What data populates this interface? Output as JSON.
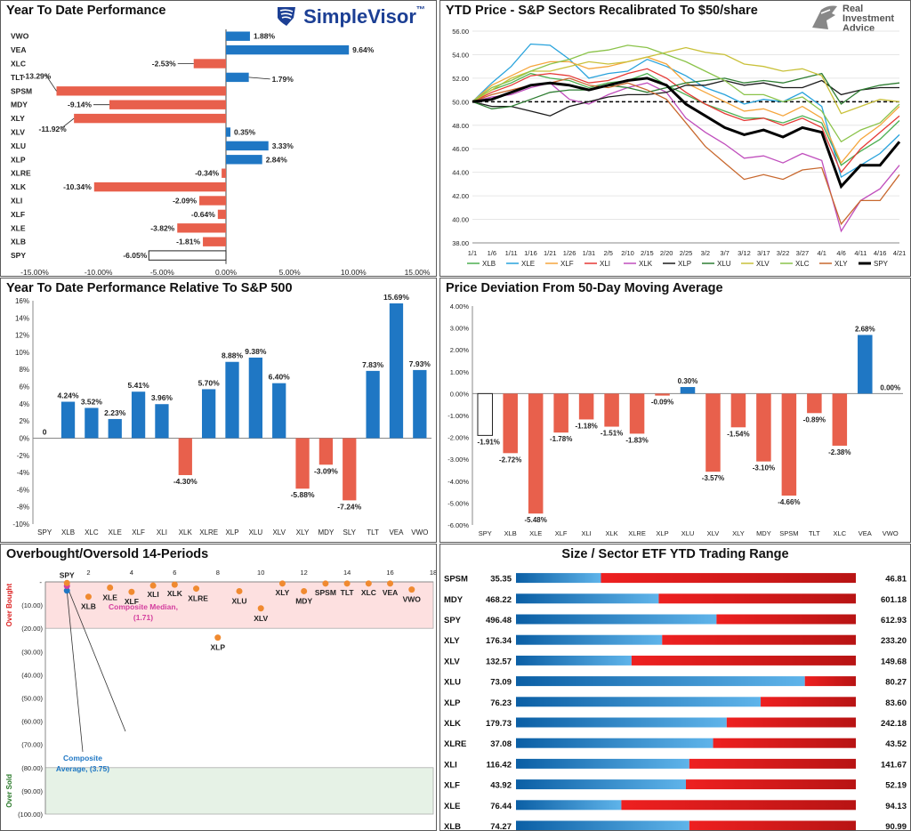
{
  "logos": {
    "simplevisor": "SimpleVisor",
    "simplevisor_tm": "™",
    "ria_line1": "Real",
    "ria_line2": "Investment",
    "ria_line3": "Advice"
  },
  "colors": {
    "positive": "#1f77c4",
    "negative": "#e8604c",
    "spy_fill": "#ffffff",
    "overbought_zone": "#fde0e0",
    "oversold_zone": "#e6f2e6"
  },
  "chart_data": [
    {
      "id": "ytd",
      "type": "bar",
      "orientation": "horizontal",
      "title": "Year To Date Performance",
      "categories": [
        "VWO",
        "VEA",
        "XLC",
        "TLT",
        "SPSM",
        "MDY",
        "XLY",
        "XLV",
        "XLU",
        "XLP",
        "XLRE",
        "XLK",
        "XLI",
        "XLF",
        "XLE",
        "XLB",
        "SPY"
      ],
      "values": [
        1.88,
        9.64,
        -2.53,
        1.79,
        -13.29,
        -9.14,
        -11.92,
        0.35,
        3.33,
        2.84,
        -0.34,
        -10.34,
        -2.09,
        -0.64,
        -3.82,
        -1.81,
        -6.05
      ],
      "labels": [
        "1.88%",
        "9.64%",
        "-2.53%",
        "1.79%",
        "-13.29%",
        "-9.14%",
        "-11.92%",
        "0.35%",
        "3.33%",
        "2.84%",
        "-0.34%",
        "-10.34%",
        "-2.09%",
        "-0.64%",
        "-3.82%",
        "-1.81%",
        "-6.05%"
      ],
      "xlim": [
        -15,
        15
      ],
      "xticks": [
        -15,
        -10,
        -5,
        0,
        5,
        10,
        15
      ],
      "xtick_labels": [
        "-15.00%",
        "-10.00%",
        "-5.00%",
        "0.00%",
        "5.00%",
        "10.00%",
        "15.00%"
      ]
    },
    {
      "id": "ytdprice",
      "type": "line",
      "title": "YTD Price - S&P Sectors Recalibrated To $50/share",
      "x_labels": [
        "1/1",
        "1/6",
        "1/11",
        "1/16",
        "1/21",
        "1/26",
        "1/31",
        "2/5",
        "2/10",
        "2/15",
        "2/20",
        "2/25",
        "3/2",
        "3/7",
        "3/12",
        "3/17",
        "3/22",
        "3/27",
        "4/1",
        "4/6",
        "4/11",
        "4/16",
        "4/21"
      ],
      "ylim": [
        38,
        56
      ],
      "yticks": [
        38,
        40,
        42,
        44,
        46,
        48,
        50,
        52,
        54,
        56
      ],
      "ytick_labels": [
        "38.00",
        "40.00",
        "42.00",
        "44.00",
        "46.00",
        "48.00",
        "50.00",
        "52.00",
        "54.00",
        "56.00"
      ],
      "reference_line": 50,
      "series": [
        {
          "name": "XLB",
          "color": "#4caf50",
          "values": [
            50,
            51.0,
            51.6,
            52.4,
            52.0,
            51.8,
            51.2,
            51.6,
            51.8,
            52.4,
            51.4,
            50.6,
            49.8,
            49.2,
            48.6,
            48.6,
            48.2,
            48.8,
            48.2,
            44.6,
            45.8,
            46.8,
            48.4
          ]
        },
        {
          "name": "XLE",
          "color": "#29a3dc",
          "values": [
            50,
            51.6,
            53.0,
            54.9,
            54.8,
            53.6,
            52.0,
            52.4,
            52.6,
            53.6,
            53.0,
            52.2,
            51.2,
            50.6,
            49.8,
            50.2,
            50.0,
            50.8,
            49.6,
            43.6,
            44.6,
            45.6,
            47.2
          ]
        },
        {
          "name": "XLF",
          "color": "#f5a63d",
          "values": [
            50,
            51.4,
            52.2,
            53.0,
            53.4,
            53.4,
            52.8,
            53.0,
            53.4,
            53.8,
            53.2,
            51.6,
            50.8,
            50.0,
            49.2,
            49.4,
            48.8,
            49.6,
            48.6,
            44.8,
            46.8,
            48.0,
            49.6
          ]
        },
        {
          "name": "XLI",
          "color": "#e53935",
          "values": [
            50,
            50.8,
            51.4,
            52.2,
            52.4,
            52.2,
            51.6,
            51.8,
            52.4,
            52.8,
            52.0,
            50.8,
            49.8,
            49.0,
            48.4,
            48.6,
            48.0,
            48.6,
            47.8,
            44.0,
            46.0,
            47.4,
            48.8
          ]
        },
        {
          "name": "XLK",
          "color": "#c04fbd",
          "values": [
            50,
            50.4,
            50.6,
            51.2,
            51.6,
            50.2,
            49.8,
            50.6,
            51.2,
            51.6,
            50.8,
            48.6,
            47.4,
            46.4,
            45.2,
            45.4,
            44.8,
            45.6,
            45.0,
            39.0,
            41.6,
            42.6,
            44.6
          ]
        },
        {
          "name": "XLP",
          "color": "#1a1a1a",
          "values": [
            50,
            49.6,
            49.6,
            49.2,
            48.8,
            49.6,
            50.0,
            50.4,
            50.6,
            50.6,
            50.8,
            51.4,
            51.4,
            51.8,
            51.4,
            51.6,
            51.2,
            51.2,
            51.8,
            50.6,
            51.0,
            51.2,
            51.2
          ]
        },
        {
          "name": "XLU",
          "color": "#2e7d32",
          "values": [
            50,
            49.4,
            49.6,
            50.2,
            50.8,
            51.0,
            51.0,
            51.4,
            51.2,
            50.8,
            51.2,
            51.6,
            51.8,
            52.0,
            51.6,
            51.8,
            51.6,
            52.0,
            52.4,
            49.8,
            51.0,
            51.4,
            51.6
          ]
        },
        {
          "name": "XLV",
          "color": "#c9c13a",
          "values": [
            50,
            51.0,
            52.0,
            52.6,
            52.6,
            53.0,
            53.4,
            53.2,
            53.4,
            53.8,
            54.2,
            54.6,
            54.2,
            54.0,
            53.2,
            53.0,
            52.6,
            52.8,
            52.2,
            49.0,
            49.6,
            50.2,
            50.0
          ]
        },
        {
          "name": "XLC",
          "color": "#8bc34a",
          "values": [
            50,
            51.2,
            51.8,
            52.6,
            53.2,
            53.6,
            54.2,
            54.4,
            54.8,
            54.6,
            54.0,
            53.4,
            52.6,
            51.8,
            50.6,
            50.6,
            50.0,
            50.4,
            49.2,
            46.6,
            47.6,
            48.2,
            49.8
          ]
        },
        {
          "name": "XLY",
          "color": "#c8682e",
          "values": [
            50,
            50.6,
            51.0,
            51.4,
            51.6,
            52.0,
            51.4,
            51.2,
            51.6,
            51.0,
            50.2,
            48.2,
            46.2,
            44.8,
            43.4,
            43.8,
            43.4,
            44.2,
            44.4,
            39.6,
            41.6,
            41.6,
            43.8
          ]
        },
        {
          "name": "SPY",
          "color": "#000000",
          "values": [
            50,
            50.2,
            50.8,
            51.4,
            51.6,
            51.4,
            51.0,
            51.4,
            51.8,
            52.0,
            51.4,
            49.8,
            48.8,
            47.8,
            47.2,
            47.6,
            47.0,
            47.8,
            47.4,
            42.8,
            44.6,
            44.6,
            46.6
          ]
        }
      ],
      "legend_position": "bottom"
    },
    {
      "id": "relative",
      "type": "bar",
      "title": "Year To Date Performance Relative To S&P 500",
      "categories": [
        "SPY",
        "XLB",
        "XLC",
        "XLE",
        "XLF",
        "XLI",
        "XLK",
        "XLRE",
        "XLP",
        "XLU",
        "XLV",
        "XLY",
        "MDY",
        "SLY",
        "TLT",
        "VEA",
        "VWO"
      ],
      "values": [
        0,
        4.24,
        3.52,
        2.23,
        5.41,
        3.96,
        -4.3,
        5.7,
        8.88,
        9.38,
        6.4,
        -5.88,
        -3.09,
        -7.24,
        7.83,
        15.69,
        7.93
      ],
      "labels": [
        "0",
        "4.24%",
        "3.52%",
        "2.23%",
        "5.41%",
        "3.96%",
        "-4.30%",
        "5.70%",
        "8.88%",
        "9.38%",
        "6.40%",
        "-5.88%",
        "-3.09%",
        "-7.24%",
        "7.83%",
        "15.69%",
        "7.93%"
      ],
      "ylim": [
        -10,
        16
      ],
      "yticks": [
        -10,
        -8,
        -6,
        -4,
        -2,
        0,
        2,
        4,
        6,
        8,
        10,
        12,
        14,
        16
      ],
      "ytick_labels": [
        "-10%",
        "-8%",
        "-6%",
        "-4%",
        "-2%",
        "0%",
        "2%",
        "4%",
        "6%",
        "8%",
        "10%",
        "12%",
        "14%",
        "16%"
      ]
    },
    {
      "id": "deviation",
      "type": "bar",
      "title": "Price Deviation From 50-Day Moving Average",
      "categories": [
        "SPY",
        "XLB",
        "XLE",
        "XLF",
        "XLI",
        "XLK",
        "XLRE",
        "XLP",
        "XLU",
        "XLV",
        "XLY",
        "MDY",
        "SPSM",
        "TLT",
        "XLC",
        "VEA",
        "VWO"
      ],
      "values": [
        -1.91,
        -2.72,
        -5.48,
        -1.78,
        -1.18,
        -1.51,
        -1.83,
        -0.09,
        0.3,
        -3.57,
        -1.54,
        -3.1,
        -4.66,
        -0.89,
        -2.38,
        2.68,
        0.0
      ],
      "labels": [
        "-1.91%",
        "-2.72%",
        "-5.48%",
        "-1.78%",
        "-1.18%",
        "-1.51%",
        "-1.83%",
        "-0.09%",
        "0.30%",
        "-3.57%",
        "-1.54%",
        "-3.10%",
        "-4.66%",
        "-0.89%",
        "-2.38%",
        "2.68%",
        "0.00%"
      ],
      "ylim": [
        -6,
        4
      ],
      "yticks": [
        -6,
        -5,
        -4,
        -3,
        -2,
        -1,
        0,
        1,
        2,
        3,
        4
      ],
      "ytick_labels": [
        "-6.00%",
        "-5.00%",
        "-4.00%",
        "-3.00%",
        "-2.00%",
        "-1.00%",
        "0.00%",
        "1.00%",
        "2.00%",
        "3.00%",
        "4.00%"
      ]
    },
    {
      "id": "obos",
      "type": "scatter",
      "title": "Overbought/Oversold 14-Periods",
      "xlim": [
        0,
        18
      ],
      "xticks": [
        2,
        4,
        6,
        8,
        10,
        12,
        14,
        16,
        18
      ],
      "xtick_labels": [
        "2",
        "4",
        "6",
        "8",
        "10",
        "12",
        "14",
        "16",
        "18"
      ],
      "ylim": [
        0,
        100
      ],
      "yticks": [
        10,
        20,
        30,
        40,
        50,
        60,
        70,
        80,
        90,
        100
      ],
      "ytick_labels": [
        "(10.00)",
        "(20.00)",
        "(30.00)",
        "(40.00)",
        "(50.00)",
        "(60.00)",
        "(70.00)",
        "(80.00)",
        "(90.00)",
        "(100.00)"
      ],
      "y0_label": "-",
      "overbought_label": "Over Bought",
      "oversold_label": "Over Sold",
      "points": [
        {
          "name": "SPY",
          "x": 1,
          "y": 0.5
        },
        {
          "name": "XLB",
          "x": 2,
          "y": 6.4
        },
        {
          "name": "XLE",
          "x": 3,
          "y": 2.5
        },
        {
          "name": "XLF",
          "x": 4,
          "y": 4.3
        },
        {
          "name": "XLI",
          "x": 5,
          "y": 1.6
        },
        {
          "name": "XLK",
          "x": 6,
          "y": 1.2
        },
        {
          "name": "XLRE",
          "x": 7,
          "y": 2.9
        },
        {
          "name": "XLP",
          "x": 8,
          "y": 24.0
        },
        {
          "name": "XLU",
          "x": 9,
          "y": 4.0
        },
        {
          "name": "XLV",
          "x": 10,
          "y": 11.4
        },
        {
          "name": "XLY",
          "x": 11,
          "y": 0.7
        },
        {
          "name": "MDY",
          "x": 12,
          "y": 4.0
        },
        {
          "name": "SPSM",
          "x": 13,
          "y": 0.7
        },
        {
          "name": "TLT",
          "x": 14,
          "y": 0.7
        },
        {
          "name": "XLC",
          "x": 15,
          "y": 0.7
        },
        {
          "name": "VEA",
          "x": 16,
          "y": 0.7
        },
        {
          "name": "VWO",
          "x": 17,
          "y": 3.3
        }
      ],
      "composite_median": {
        "label": "Composite Median,",
        "value_label": "(1.71)",
        "x": 1,
        "y": 1.71
      },
      "composite_average": {
        "label": "Composite",
        "label2": "Average,  (3.75)",
        "x": 1,
        "y": 3.75
      }
    },
    {
      "id": "range",
      "type": "bar",
      "orientation": "horizontal",
      "title": "Size / Sector ETF YTD Trading Range",
      "rows": [
        {
          "name": "SPSM",
          "low": "35.35",
          "high": "46.81",
          "position": 0.25
        },
        {
          "name": "MDY",
          "low": "468.22",
          "high": "601.18",
          "position": 0.42
        },
        {
          "name": "SPY",
          "low": "496.48",
          "high": "612.93",
          "position": 0.59
        },
        {
          "name": "XLY",
          "low": "176.34",
          "high": "233.20",
          "position": 0.43
        },
        {
          "name": "XLV",
          "low": "132.57",
          "high": "149.68",
          "position": 0.34
        },
        {
          "name": "XLU",
          "low": "73.09",
          "high": "80.27",
          "position": 0.85
        },
        {
          "name": "XLP",
          "low": "76.23",
          "high": "83.60",
          "position": 0.72
        },
        {
          "name": "XLK",
          "low": "179.73",
          "high": "242.18",
          "position": 0.62
        },
        {
          "name": "XLRE",
          "low": "37.08",
          "high": "43.52",
          "position": 0.58
        },
        {
          "name": "XLI",
          "low": "116.42",
          "high": "141.67",
          "position": 0.51
        },
        {
          "name": "XLF",
          "low": "43.92",
          "high": "52.19",
          "position": 0.5
        },
        {
          "name": "XLE",
          "low": "76.44",
          "high": "94.13",
          "position": 0.31
        },
        {
          "name": "XLB",
          "low": "74.27",
          "high": "90.99",
          "position": 0.51
        }
      ]
    }
  ]
}
